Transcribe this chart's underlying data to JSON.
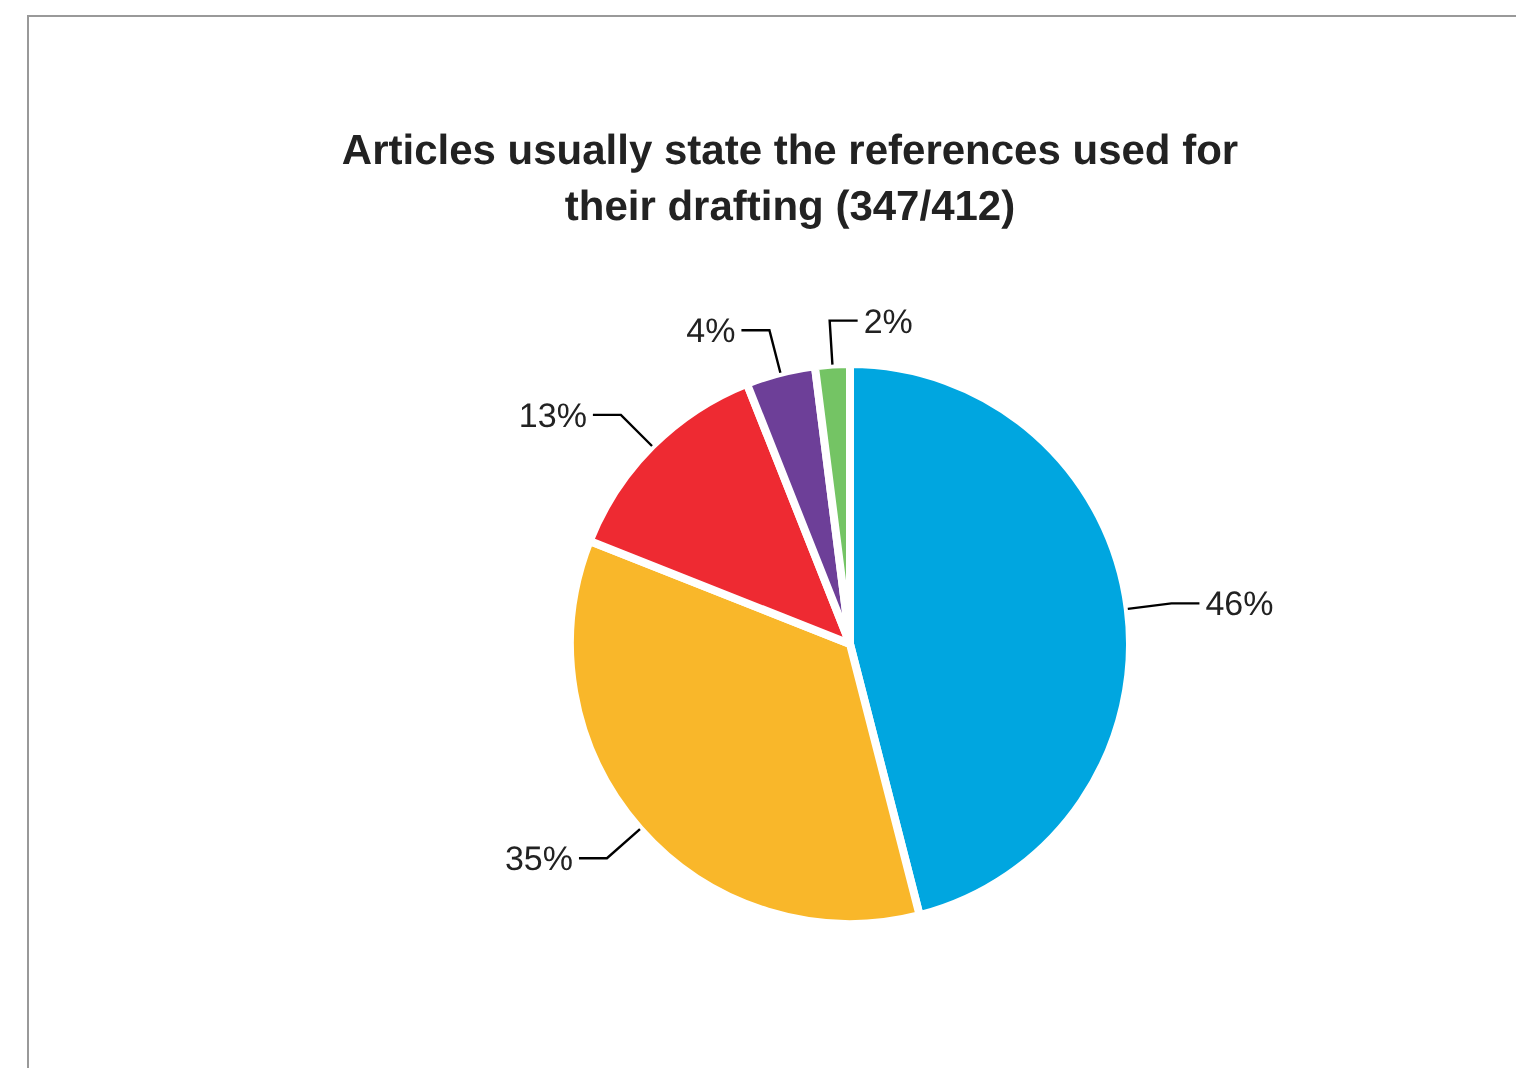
{
  "chart_data": {
    "type": "pie",
    "title": "Articles usually state the references used for their drafting (347/412)",
    "categories": [
      null,
      null,
      null,
      null,
      null
    ],
    "values": [
      46,
      35,
      13,
      4,
      2
    ],
    "value_labels": [
      "46%",
      "35%",
      "13%",
      "4%",
      "2%"
    ],
    "colors": [
      "#00a6e0",
      "#f9b72a",
      "#ee2a32",
      "#6d3f98",
      "#74c464"
    ]
  }
}
